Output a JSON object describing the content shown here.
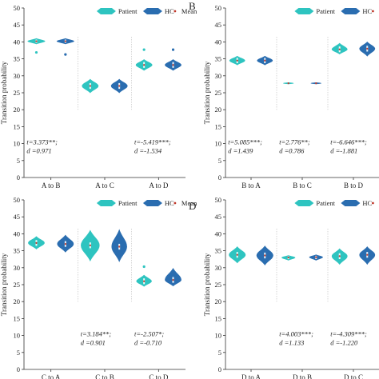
{
  "chart_data": [
    {
      "type": "violin",
      "panel_label": "",
      "ylabel": "Transition probability",
      "ylim": [
        0,
        50
      ],
      "yticks": [
        0,
        5,
        10,
        15,
        20,
        25,
        30,
        35,
        40,
        45,
        50
      ],
      "legend": {
        "placement": "top",
        "entries": [
          "Patient",
          "HC",
          "Mean"
        ]
      },
      "categories": [
        "A to B",
        "A to C",
        "A to D"
      ],
      "series": [
        {
          "name": "Patient",
          "color": "#2ec4c0",
          "groups": [
            {
              "mean": 40.2,
              "min": 39.4,
              "max": 41.0,
              "width": 0.16,
              "outliers": [
                36.9
              ]
            },
            {
              "mean": 27.0,
              "min": 25.0,
              "max": 29.0,
              "width": 0.15,
              "outliers": []
            },
            {
              "mean": 33.2,
              "min": 31.6,
              "max": 34.8,
              "width": 0.15,
              "outliers": [
                37.7
              ]
            }
          ]
        },
        {
          "name": "HC",
          "color": "#2a6db0",
          "groups": [
            {
              "mean": 40.2,
              "min": 39.4,
              "max": 41.0,
              "width": 0.16,
              "outliers": [
                36.3
              ]
            },
            {
              "mean": 27.0,
              "min": 25.0,
              "max": 29.0,
              "width": 0.15,
              "outliers": []
            },
            {
              "mean": 33.2,
              "min": 31.6,
              "max": 34.8,
              "width": 0.15,
              "outliers": [
                37.7
              ]
            }
          ]
        }
      ],
      "annotations": [
        {
          "category": "A to B",
          "t": "t=3.373**;",
          "d": "d =0.971"
        },
        {
          "category": "A to D",
          "t": "t=-5.419***;",
          "d": "d =-1.534"
        }
      ]
    },
    {
      "type": "violin",
      "panel_label": "B",
      "ylabel": "Transition probability",
      "ylim": [
        0,
        50
      ],
      "yticks": [
        0,
        5,
        10,
        15,
        20,
        25,
        30,
        35,
        40,
        45,
        50
      ],
      "legend": {
        "placement": "top",
        "entries": [
          "Patient",
          "HC",
          "M"
        ]
      },
      "categories": [
        "B to A",
        "B to C",
        "B to D"
      ],
      "series": [
        {
          "name": "Patient",
          "color": "#2ec4c0",
          "groups": [
            {
              "mean": 34.5,
              "min": 33.2,
              "max": 35.8,
              "width": 0.15,
              "outliers": []
            },
            {
              "mean": 27.8,
              "min": 27.6,
              "max": 28.0,
              "width": 0.1,
              "outliers": []
            },
            {
              "mean": 37.8,
              "min": 36.4,
              "max": 39.6,
              "width": 0.15,
              "outliers": []
            }
          ]
        },
        {
          "name": "HC",
          "color": "#2a6db0",
          "groups": [
            {
              "mean": 34.5,
              "min": 33.2,
              "max": 35.8,
              "width": 0.15,
              "outliers": []
            },
            {
              "mean": 27.8,
              "min": 27.6,
              "max": 28.0,
              "width": 0.1,
              "outliers": []
            },
            {
              "mean": 38.0,
              "min": 35.8,
              "max": 40.0,
              "width": 0.15,
              "outliers": []
            }
          ]
        }
      ],
      "annotations": [
        {
          "category": "B to A",
          "t": "t=5.085***;",
          "d": "d =1.439"
        },
        {
          "category": "B to C",
          "t": "t=2.776**;",
          "d": "d =0.786"
        },
        {
          "category": "B to D",
          "t": "t=-6.646***;",
          "d": "d =-1.881"
        }
      ]
    },
    {
      "type": "violin",
      "panel_label": "",
      "ylabel": "Transition probability",
      "ylim": [
        0,
        50
      ],
      "yticks": [
        0,
        5,
        10,
        15,
        20,
        25,
        30,
        35,
        40,
        45,
        50
      ],
      "legend": {
        "placement": "top",
        "entries": [
          "Patient",
          "HC",
          "Mean"
        ]
      },
      "categories": [
        "C to A",
        "C to B",
        "C to D"
      ],
      "series": [
        {
          "name": "Patient",
          "color": "#2ec4c0",
          "groups": [
            {
              "mean": 37.3,
              "min": 35.5,
              "max": 39.2,
              "width": 0.15,
              "outliers": []
            },
            {
              "mean": 36.6,
              "min": 32.0,
              "max": 41.0,
              "width": 0.17,
              "outliers": []
            },
            {
              "mean": 26.0,
              "min": 24.5,
              "max": 27.8,
              "width": 0.14,
              "outliers": [
                30.3
              ]
            }
          ]
        },
        {
          "name": "HC",
          "color": "#2a6db0",
          "groups": [
            {
              "mean": 37.0,
              "min": 34.6,
              "max": 39.6,
              "width": 0.15,
              "outliers": []
            },
            {
              "mean": 36.2,
              "min": 31.8,
              "max": 41.2,
              "width": 0.14,
              "outliers": []
            },
            {
              "mean": 26.4,
              "min": 24.6,
              "max": 29.8,
              "width": 0.15,
              "outliers": []
            }
          ]
        }
      ],
      "annotations": [
        {
          "category": "C to B",
          "t": "t=3.184**;",
          "d": "d =0.901"
        },
        {
          "category": "C to D",
          "t": "t=-2.507*;",
          "d": "d =-0.710"
        }
      ]
    },
    {
      "type": "violin",
      "panel_label": "D",
      "ylabel": "Transition probability",
      "ylim": [
        0,
        50
      ],
      "yticks": [
        0,
        5,
        10,
        15,
        20,
        25,
        30,
        35,
        40,
        45,
        50
      ],
      "legend": {
        "placement": "top",
        "entries": [
          "Patient",
          "HC",
          "M"
        ]
      },
      "categories": [
        "D to A",
        "D to B",
        "D to C"
      ],
      "series": [
        {
          "name": "Patient",
          "color": "#2ec4c0",
          "groups": [
            {
              "mean": 33.8,
              "min": 31.4,
              "max": 36.2,
              "width": 0.16,
              "outliers": []
            },
            {
              "mean": 33.0,
              "min": 32.2,
              "max": 33.6,
              "width": 0.13,
              "outliers": []
            },
            {
              "mean": 33.4,
              "min": 31.0,
              "max": 35.6,
              "width": 0.15,
              "outliers": []
            }
          ]
        },
        {
          "name": "HC",
          "color": "#2a6db0",
          "groups": [
            {
              "mean": 33.6,
              "min": 30.8,
              "max": 36.4,
              "width": 0.16,
              "outliers": []
            },
            {
              "mean": 33.1,
              "min": 32.2,
              "max": 33.8,
              "width": 0.13,
              "outliers": []
            },
            {
              "mean": 33.8,
              "min": 31.0,
              "max": 36.2,
              "width": 0.15,
              "outliers": []
            }
          ]
        }
      ],
      "annotations": [
        {
          "category": "D to B",
          "t": "t=4.003***;",
          "d": "d =1.133"
        },
        {
          "category": "D to C",
          "t": "t=-4.309***;",
          "d": "d =-1.220"
        }
      ]
    }
  ]
}
